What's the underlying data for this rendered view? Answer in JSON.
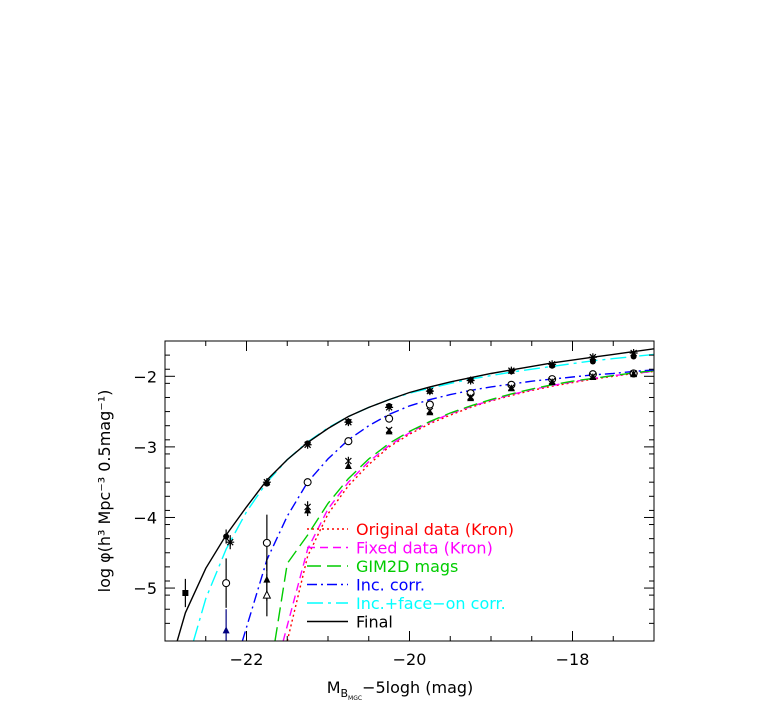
{
  "chart_data": {
    "type": "line",
    "xlabel": "M",
    "xlabel_sub": "B",
    "xlabel_subsub": "MGC",
    "xlabel_rest": "−5logh (mag)",
    "ylabel": "log φ(h³ Mpc⁻³ 0.5mag⁻¹)",
    "xlim": [
      -23.0,
      -17.0
    ],
    "ylim": [
      -5.75,
      -1.5
    ],
    "xticks": [
      -22,
      -20,
      -18
    ],
    "xtick_labels": [
      "−22",
      "−20",
      "−18"
    ],
    "yticks": [
      -5,
      -4,
      -3,
      -2
    ],
    "ytick_labels": [
      "−5",
      "−4",
      "−3",
      "−2"
    ],
    "grid": false,
    "legend_position": "bottom-right",
    "series": [
      {
        "name": "Original data (Kron)",
        "color": "#ff0000",
        "dash": "dotted",
        "x": [
          -21.5,
          -21.25,
          -21.0,
          -20.75,
          -20.5,
          -20.25,
          -20.0,
          -19.75,
          -19.5,
          -19.25,
          -19.0,
          -18.75,
          -18.5,
          -18.25,
          -18.0,
          -17.75,
          -17.5,
          -17.25,
          -17.0
        ],
        "y": [
          -5.75,
          -4.55,
          -3.95,
          -3.55,
          -3.25,
          -3.0,
          -2.82,
          -2.67,
          -2.55,
          -2.44,
          -2.35,
          -2.27,
          -2.2,
          -2.14,
          -2.09,
          -2.04,
          -2.0,
          -1.96,
          -1.93
        ]
      },
      {
        "name": "Fixed data (Kron)",
        "color": "#ff00ff",
        "dash": "dashed",
        "x": [
          -21.55,
          -21.25,
          -21.0,
          -20.75,
          -20.5,
          -20.25,
          -20.0,
          -19.75,
          -19.5,
          -19.25,
          -19.0,
          -18.75,
          -18.5,
          -18.25,
          -18.0,
          -17.75,
          -17.5,
          -17.25,
          -17.0
        ],
        "y": [
          -5.75,
          -4.45,
          -3.88,
          -3.5,
          -3.21,
          -2.98,
          -2.8,
          -2.65,
          -2.53,
          -2.43,
          -2.34,
          -2.26,
          -2.19,
          -2.13,
          -2.08,
          -2.03,
          -1.99,
          -1.96,
          -1.93
        ]
      },
      {
        "name": "GIM2D mags",
        "color": "#00cc00",
        "dash": "longdash",
        "x": [
          -21.65,
          -21.5,
          -21.25,
          -21.0,
          -20.75,
          -20.5,
          -20.25,
          -20.0,
          -19.75,
          -19.5,
          -19.25,
          -19.0,
          -18.75,
          -18.5,
          -18.25,
          -18.0,
          -17.75,
          -17.5,
          -17.25,
          -17.0
        ],
        "y": [
          -5.75,
          -4.65,
          -4.25,
          -3.8,
          -3.45,
          -3.17,
          -2.95,
          -2.78,
          -2.64,
          -2.52,
          -2.42,
          -2.33,
          -2.25,
          -2.18,
          -2.12,
          -2.07,
          -2.03,
          -1.99,
          -1.95,
          -1.92
        ]
      },
      {
        "name": "Inc. corr.",
        "color": "#0000ff",
        "dash": "dashdot",
        "x": [
          -22.05,
          -21.75,
          -21.5,
          -21.25,
          -21.0,
          -20.75,
          -20.5,
          -20.25,
          -20.0,
          -19.75,
          -19.5,
          -19.25,
          -19.0,
          -18.75,
          -18.5,
          -18.25,
          -18.0,
          -17.75,
          -17.5,
          -17.25,
          -17.0
        ],
        "y": [
          -5.75,
          -4.6,
          -3.98,
          -3.5,
          -3.17,
          -2.9,
          -2.7,
          -2.54,
          -2.42,
          -2.33,
          -2.26,
          -2.2,
          -2.15,
          -2.11,
          -2.07,
          -2.04,
          -2.01,
          -1.98,
          -1.96,
          -1.93,
          -1.91
        ]
      },
      {
        "name": "Inc.+face−on corr.",
        "color": "#00ffff",
        "dash": "longdashdot",
        "x": [
          -22.65,
          -22.5,
          -22.25,
          -22.0,
          -21.75,
          -21.5,
          -21.25,
          -21.0,
          -20.75,
          -20.5,
          -20.25,
          -20.0,
          -19.75,
          -19.5,
          -19.25,
          -19.0,
          -18.75,
          -18.5,
          -18.25,
          -18.0,
          -17.75,
          -17.5,
          -17.25,
          -17.0
        ],
        "y": [
          -5.75,
          -5.15,
          -4.45,
          -3.92,
          -3.5,
          -3.18,
          -2.93,
          -2.73,
          -2.57,
          -2.44,
          -2.33,
          -2.24,
          -2.17,
          -2.1,
          -2.04,
          -1.99,
          -1.94,
          -1.9,
          -1.86,
          -1.82,
          -1.78,
          -1.75,
          -1.72,
          -1.69
        ]
      },
      {
        "name": "Final",
        "color": "#000000",
        "dash": "solid",
        "x": [
          -22.85,
          -22.75,
          -22.5,
          -22.25,
          -22.0,
          -21.75,
          -21.5,
          -21.25,
          -21.0,
          -20.75,
          -20.5,
          -20.25,
          -20.0,
          -19.75,
          -19.5,
          -19.25,
          -19.0,
          -18.75,
          -18.5,
          -18.25,
          -18.0,
          -17.75,
          -17.5,
          -17.25,
          -17.0
        ],
        "y": [
          -5.75,
          -5.35,
          -4.72,
          -4.25,
          -3.85,
          -3.47,
          -3.18,
          -2.94,
          -2.74,
          -2.57,
          -2.44,
          -2.33,
          -2.23,
          -2.15,
          -2.08,
          -2.02,
          -1.96,
          -1.91,
          -1.86,
          -1.81,
          -1.77,
          -1.73,
          -1.69,
          -1.65,
          -1.61
        ]
      }
    ],
    "points": [
      {
        "x": -22.75,
        "y": -5.07,
        "err": 0.2,
        "marker": "filled-square",
        "color": "#000000"
      },
      {
        "x": -22.25,
        "y": -4.27,
        "err": 0.1,
        "marker": "filled-circle",
        "color": "#000000"
      },
      {
        "x": -21.75,
        "y": -3.52,
        "err": 0.04,
        "marker": "filled-circle",
        "color": "#000000"
      },
      {
        "x": -21.25,
        "y": -2.95,
        "err": 0.02,
        "marker": "filled-circle",
        "color": "#000000"
      },
      {
        "x": -20.75,
        "y": -2.64,
        "err": 0.02,
        "marker": "filled-circle",
        "color": "#000000"
      },
      {
        "x": -20.25,
        "y": -2.42,
        "err": 0.02,
        "marker": "filled-circle",
        "color": "#000000"
      },
      {
        "x": -19.75,
        "y": -2.21,
        "err": 0.02,
        "marker": "filled-circle",
        "color": "#000000"
      },
      {
        "x": -19.25,
        "y": -2.05,
        "err": 0.02,
        "marker": "filled-circle",
        "color": "#000000"
      },
      {
        "x": -18.75,
        "y": -1.93,
        "err": 0.02,
        "marker": "filled-circle",
        "color": "#000000"
      },
      {
        "x": -18.25,
        "y": -1.85,
        "err": 0.02,
        "marker": "filled-circle",
        "color": "#000000"
      },
      {
        "x": -17.75,
        "y": -1.79,
        "err": 0.02,
        "marker": "filled-circle",
        "color": "#000000"
      },
      {
        "x": -17.25,
        "y": -1.72,
        "err": 0.02,
        "marker": "filled-circle",
        "color": "#000000"
      },
      {
        "x": -22.2,
        "y": -4.35,
        "err": 0.1,
        "marker": "star",
        "color": "#000000"
      },
      {
        "x": -21.75,
        "y": -3.5,
        "err": 0.04,
        "marker": "star",
        "color": "#000000"
      },
      {
        "x": -21.25,
        "y": -2.97,
        "err": 0.02,
        "marker": "star",
        "color": "#000000"
      },
      {
        "x": -20.75,
        "y": -2.65,
        "err": 0.02,
        "marker": "star",
        "color": "#000000"
      },
      {
        "x": -20.25,
        "y": -2.44,
        "err": 0.02,
        "marker": "star",
        "color": "#000000"
      },
      {
        "x": -19.75,
        "y": -2.21,
        "err": 0.02,
        "marker": "star",
        "color": "#000000"
      },
      {
        "x": -19.25,
        "y": -2.06,
        "err": 0.02,
        "marker": "star",
        "color": "#000000"
      },
      {
        "x": -18.75,
        "y": -1.92,
        "err": 0.02,
        "marker": "star",
        "color": "#000000"
      },
      {
        "x": -18.25,
        "y": -1.83,
        "err": 0.02,
        "marker": "star",
        "color": "#000000"
      },
      {
        "x": -17.75,
        "y": -1.73,
        "err": 0.02,
        "marker": "star",
        "color": "#000000"
      },
      {
        "x": -17.25,
        "y": -1.67,
        "err": 0.02,
        "marker": "star",
        "color": "#000000"
      },
      {
        "x": -22.25,
        "y": -4.93,
        "err": 0.35,
        "marker": "open-circle",
        "color": "#000000"
      },
      {
        "x": -21.75,
        "y": -4.36,
        "err": 0.4,
        "marker": "open-circle",
        "color": "#000000"
      },
      {
        "x": -21.25,
        "y": -3.5,
        "err": 0.04,
        "marker": "open-circle",
        "color": "#000000"
      },
      {
        "x": -20.75,
        "y": -2.92,
        "err": 0.03,
        "marker": "open-circle",
        "color": "#000000"
      },
      {
        "x": -20.25,
        "y": -2.6,
        "err": 0.02,
        "marker": "open-circle",
        "color": "#000000"
      },
      {
        "x": -19.75,
        "y": -2.4,
        "err": 0.02,
        "marker": "open-circle",
        "color": "#000000"
      },
      {
        "x": -19.25,
        "y": -2.24,
        "err": 0.02,
        "marker": "open-circle",
        "color": "#000000"
      },
      {
        "x": -18.75,
        "y": -2.12,
        "err": 0.02,
        "marker": "open-circle",
        "color": "#000000"
      },
      {
        "x": -18.25,
        "y": -2.04,
        "err": 0.02,
        "marker": "open-circle",
        "color": "#000000"
      },
      {
        "x": -17.75,
        "y": -1.97,
        "err": 0.02,
        "marker": "open-circle",
        "color": "#000000"
      },
      {
        "x": -17.25,
        "y": -1.96,
        "err": 0.02,
        "marker": "open-circle",
        "color": "#000000"
      },
      {
        "x": -22.25,
        "y": -5.6,
        "err": 0.3,
        "marker": "filled-triangle",
        "color": "#000080"
      },
      {
        "x": -21.75,
        "y": -4.88,
        "err": 0.3,
        "marker": "filled-triangle",
        "color": "#000000"
      },
      {
        "x": -21.25,
        "y": -3.9,
        "err": 0.08,
        "marker": "filled-triangle",
        "color": "#000000"
      },
      {
        "x": -20.75,
        "y": -3.27,
        "err": 0.04,
        "marker": "filled-triangle",
        "color": "#000000"
      },
      {
        "x": -20.25,
        "y": -2.78,
        "err": 0.02,
        "marker": "filled-triangle",
        "color": "#000000"
      },
      {
        "x": -19.75,
        "y": -2.51,
        "err": 0.02,
        "marker": "filled-triangle",
        "color": "#000000"
      },
      {
        "x": -19.25,
        "y": -2.31,
        "err": 0.02,
        "marker": "filled-triangle",
        "color": "#000000"
      },
      {
        "x": -18.75,
        "y": -2.17,
        "err": 0.02,
        "marker": "filled-triangle",
        "color": "#000000"
      },
      {
        "x": -18.25,
        "y": -2.08,
        "err": 0.02,
        "marker": "filled-triangle",
        "color": "#000000"
      },
      {
        "x": -17.75,
        "y": -2.01,
        "err": 0.02,
        "marker": "filled-triangle",
        "color": "#000000"
      },
      {
        "x": -17.25,
        "y": -1.97,
        "err": 0.02,
        "marker": "filled-triangle",
        "color": "#000000"
      },
      {
        "x": -21.75,
        "y": -5.1,
        "err": 0.3,
        "marker": "open-triangle",
        "color": "#000000"
      },
      {
        "x": -21.25,
        "y": -3.85,
        "err": 0.08,
        "marker": "cross",
        "color": "#000000"
      },
      {
        "x": -20.75,
        "y": -3.2,
        "err": 0.06,
        "marker": "cross",
        "color": "#000000"
      },
      {
        "x": -20.25,
        "y": -2.76,
        "err": 0.02,
        "marker": "cross",
        "color": "#000000"
      },
      {
        "x": -19.75,
        "y": -2.49,
        "err": 0.02,
        "marker": "cross",
        "color": "#000000"
      },
      {
        "x": -19.25,
        "y": -2.29,
        "err": 0.02,
        "marker": "cross",
        "color": "#000000"
      },
      {
        "x": -18.75,
        "y": -2.16,
        "err": 0.02,
        "marker": "cross",
        "color": "#000000"
      },
      {
        "x": -18.25,
        "y": -2.07,
        "err": 0.02,
        "marker": "cross",
        "color": "#000000"
      },
      {
        "x": -17.75,
        "y": -2.0,
        "err": 0.02,
        "marker": "cross",
        "color": "#000000"
      },
      {
        "x": -17.25,
        "y": -1.96,
        "err": 0.02,
        "marker": "cross",
        "color": "#000000"
      }
    ]
  }
}
